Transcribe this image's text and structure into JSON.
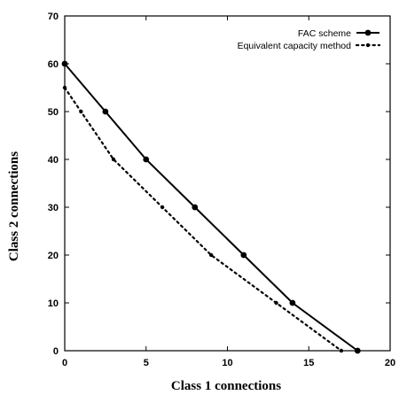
{
  "chart_data": {
    "type": "line",
    "title": "",
    "xlabel": "Class 1 connections",
    "ylabel": "Class 2 connections",
    "xlim": [
      0,
      20
    ],
    "ylim": [
      0,
      70
    ],
    "xticks": [
      "0",
      "5",
      "10",
      "15",
      "20"
    ],
    "yticks": [
      "0",
      "10",
      "20",
      "30",
      "40",
      "50",
      "60",
      "70"
    ],
    "grid": false,
    "legend_position": "top-right",
    "series": [
      {
        "name": "FAC scheme",
        "style": "solid-with-markers",
        "color": "#000000",
        "x": [
          0,
          2.5,
          5,
          8,
          11,
          14,
          18
        ],
        "y": [
          60,
          50,
          40,
          30,
          20,
          10,
          0
        ]
      },
      {
        "name": "Equivalent capacity method",
        "style": "dotted-with-markers",
        "color": "#000000",
        "x": [
          0,
          1,
          3,
          6,
          9,
          13,
          17
        ],
        "y": [
          55,
          50,
          40,
          30,
          20,
          10,
          0
        ]
      }
    ]
  }
}
